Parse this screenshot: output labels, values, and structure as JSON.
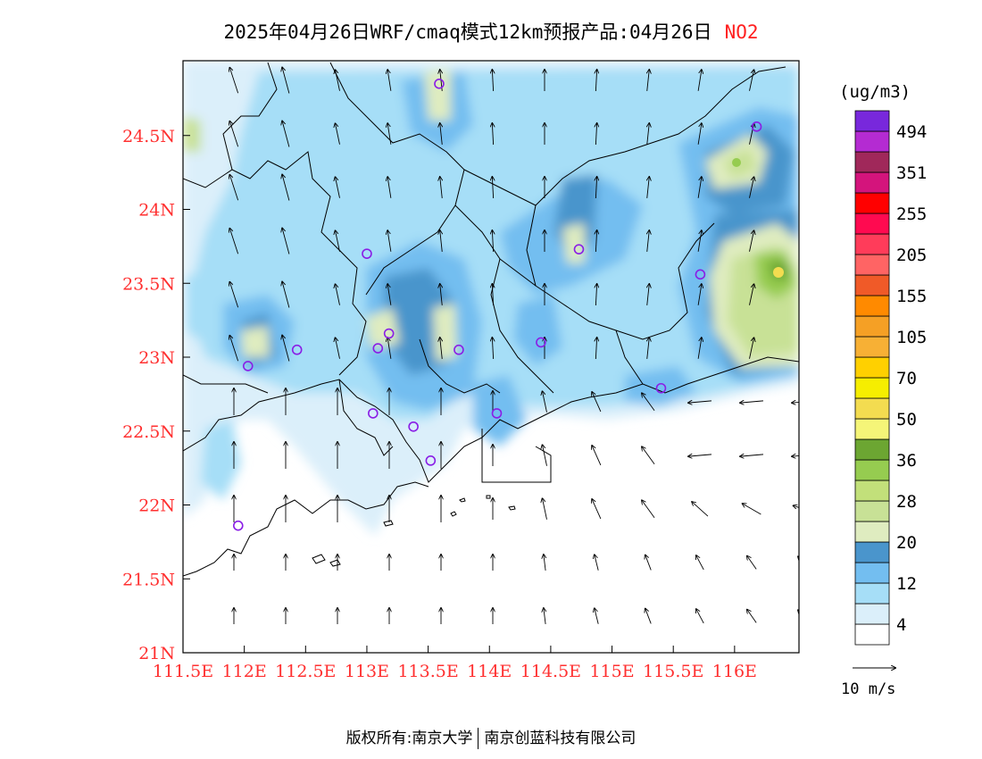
{
  "title": {
    "main": "2025年04月26日WRF/cmaq模式12km预报产品:04月26日",
    "pollutant": "NO2"
  },
  "legend": {
    "unit": "(ug/m3)",
    "colors": [
      "#ffffff",
      "#dbeffa",
      "#a6def7",
      "#73bef0",
      "#4a95cc",
      "#dfecc0",
      "#c8e196",
      "#c2e07a",
      "#96cc50",
      "#6ca632",
      "#f5f578",
      "#f3dc50",
      "#f6ee00",
      "#ffd000",
      "#f7b035",
      "#f5a025",
      "#ff8a00",
      "#f05a28",
      "#ff6464",
      "#ff3c5a",
      "#ff0a50",
      "#ff0000",
      "#d4147c",
      "#a0285a",
      "#b42bd2",
      "#7828dc"
    ],
    "labels": [
      "4",
      "12",
      "20",
      "28",
      "36",
      "50",
      "70",
      "105",
      "155",
      "205",
      "255",
      "351",
      "494"
    ]
  },
  "axes": {
    "lon_labels": [
      "111.5E",
      "112E",
      "112.5E",
      "113E",
      "113.5E",
      "114E",
      "114.5E",
      "115E",
      "115.5E",
      "116E"
    ],
    "lat_labels": [
      "24.5N",
      "24N",
      "23.5N",
      "23N",
      "22.5N",
      "22N",
      "21.5N",
      "21N"
    ]
  },
  "wind_scale": {
    "label": "10 m/s"
  },
  "copyright": {
    "left": "版权所有:南京大学",
    "right": "南京创蓝科技有限公司"
  },
  "stations": [
    {
      "lon": 113.59,
      "lat": 24.85
    },
    {
      "lon": 116.18,
      "lat": 24.56
    },
    {
      "lon": 114.73,
      "lat": 23.73
    },
    {
      "lon": 115.72,
      "lat": 23.56
    },
    {
      "lon": 113.0,
      "lat": 23.7
    },
    {
      "lon": 112.43,
      "lat": 23.05
    },
    {
      "lon": 112.03,
      "lat": 22.94
    },
    {
      "lon": 113.09,
      "lat": 23.06
    },
    {
      "lon": 113.18,
      "lat": 23.16
    },
    {
      "lon": 113.75,
      "lat": 23.05
    },
    {
      "lon": 114.42,
      "lat": 23.1
    },
    {
      "lon": 115.4,
      "lat": 22.79
    },
    {
      "lon": 113.05,
      "lat": 22.62
    },
    {
      "lon": 113.38,
      "lat": 22.53
    },
    {
      "lon": 114.06,
      "lat": 22.62
    },
    {
      "lon": 113.52,
      "lat": 22.3
    },
    {
      "lon": 111.95,
      "lat": 21.86
    }
  ]
}
